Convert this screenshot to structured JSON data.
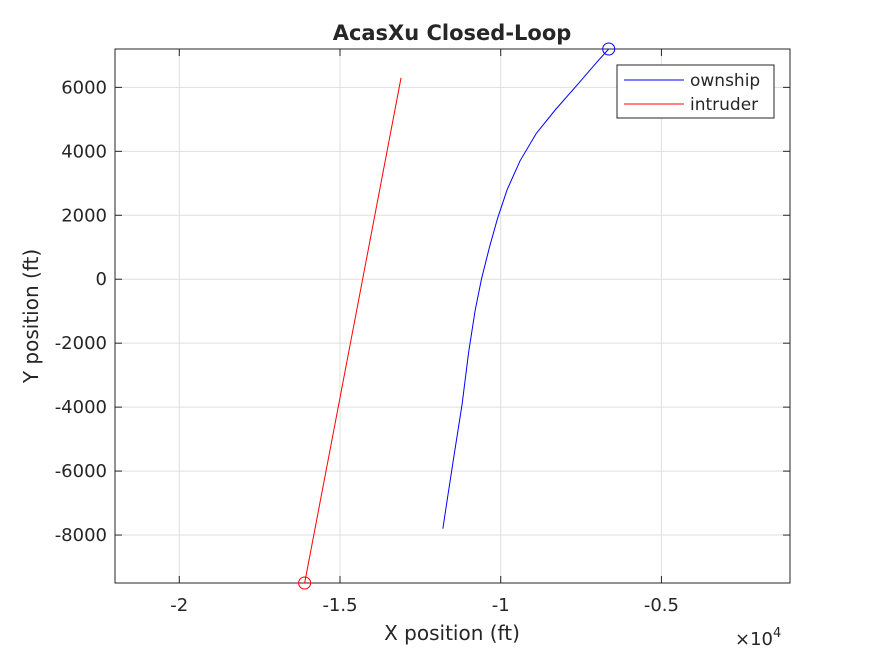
{
  "chart_data": {
    "type": "line",
    "title": "AcasXu Closed-Loop",
    "xlabel": "X position (ft)",
    "ylabel": "Y position (ft)",
    "x_multiplier_label": "×10",
    "x_multiplier_exponent": "4",
    "xlim": [
      -22000,
      -1000
    ],
    "ylim": [
      -9500,
      7200
    ],
    "x_ticks": [
      -20000,
      -15000,
      -10000,
      -5000
    ],
    "x_tick_labels": [
      "-2",
      "-1.5",
      "-1",
      "-0.5"
    ],
    "y_ticks": [
      -8000,
      -6000,
      -4000,
      -2000,
      0,
      2000,
      4000,
      6000
    ],
    "y_tick_labels": [
      "-8000",
      "-6000",
      "-4000",
      "-2000",
      "0",
      "2000",
      "4000",
      "6000"
    ],
    "grid": true,
    "legend_position": "top-right",
    "series": [
      {
        "name": "ownship",
        "color": "#0000ff",
        "x": [
          -11800,
          -11650,
          -11450,
          -11200,
          -11000,
          -10800,
          -10600,
          -10350,
          -10100,
          -9800,
          -9400,
          -8900,
          -8300,
          -7600,
          -7000,
          -6640
        ],
        "y": [
          -7800,
          -6800,
          -5500,
          -3900,
          -2300,
          -1000,
          0,
          1000,
          1900,
          2800,
          3700,
          4550,
          5300,
          6100,
          6800,
          7200
        ],
        "marker_at_end": "circle"
      },
      {
        "name": "intruder",
        "color": "#ff0000",
        "x": [
          -16100,
          -13100
        ],
        "y": [
          -9500,
          6300
        ],
        "marker_at_start": "circle"
      }
    ]
  }
}
